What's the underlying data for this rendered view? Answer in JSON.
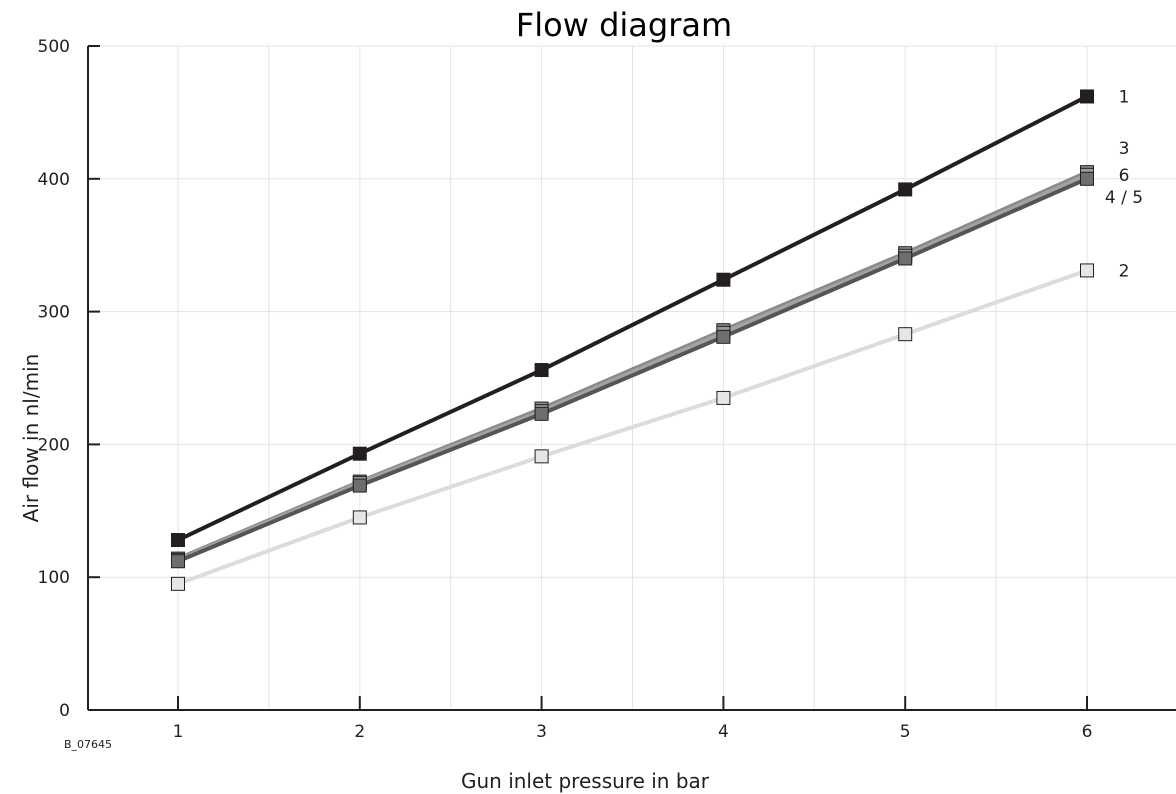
{
  "chart_data": {
    "type": "line",
    "title": "Flow diagram",
    "xlabel": "Gun inlet pressure in bar",
    "ylabel": "Air flow in nl/min",
    "figure_code": "B_07645",
    "x": [
      1,
      2,
      3,
      4,
      5,
      6
    ],
    "x_ticks": [
      "1",
      "2",
      "3",
      "4",
      "5",
      "6"
    ],
    "y_ticks": [
      "0",
      "100",
      "200",
      "300",
      "400",
      "500"
    ],
    "xlim": [
      0.5,
      6.5
    ],
    "ylim": [
      0,
      500
    ],
    "grid": true,
    "series": [
      {
        "name": "1",
        "values": [
          128,
          193,
          256,
          324,
          392,
          462
        ],
        "color": "#231f20",
        "marker_fill": "#231f20"
      },
      {
        "name": "2",
        "values": [
          95,
          145,
          191,
          235,
          283,
          331
        ],
        "color": "#dcdcdc",
        "marker_fill": "#e6e6e6"
      },
      {
        "name": "3",
        "values": [
          114,
          172,
          227,
          286,
          344,
          405
        ],
        "color": "#8a8a8a",
        "marker_fill": "#8a8a8a"
      },
      {
        "name": "4 / 5",
        "values": [
          112,
          169,
          223,
          281,
          340,
          400
        ],
        "color": "#555555",
        "marker_fill": "#6e6e6e"
      },
      {
        "name": "6",
        "values": [
          113,
          171,
          225,
          284,
          342,
          403
        ],
        "color": "#a3a3a3",
        "marker_fill": "#9a9a9a"
      }
    ]
  }
}
